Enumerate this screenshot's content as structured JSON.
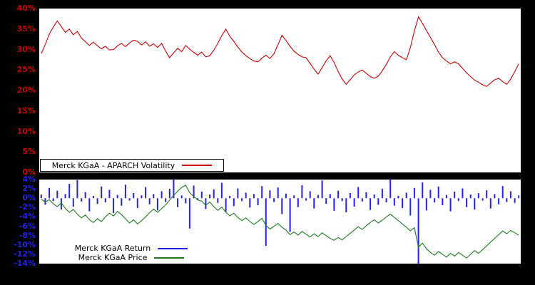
{
  "figure": {
    "background": "#000000",
    "plot_background": "#ffffff"
  },
  "colors": {
    "volatility": "#cc0000",
    "return": "#2222ee",
    "price": "#1f7a1f"
  },
  "chart_data": [
    {
      "type": "line",
      "legend": "Merck KGaA - APARCH Volatility",
      "color": "#cc0000",
      "ylim": [
        0,
        40
      ],
      "yticks": [
        40,
        35,
        30,
        25,
        20,
        15,
        10,
        5,
        0
      ],
      "ytick_labels": [
        "40%",
        "35%",
        "30%",
        "25%",
        "20%",
        "15%",
        "10%",
        "5%",
        "0%"
      ],
      "grid": false,
      "legend_position": "bottom-left",
      "values": [
        29.0,
        31.2,
        33.8,
        35.5,
        37.0,
        35.6,
        34.2,
        35.0,
        33.6,
        34.4,
        32.8,
        31.9,
        31.0,
        31.8,
        30.9,
        30.2,
        30.8,
        29.9,
        30.0,
        30.9,
        31.5,
        30.7,
        31.6,
        32.3,
        32.0,
        31.1,
        31.9,
        30.8,
        31.4,
        30.5,
        31.5,
        29.6,
        28.0,
        29.2,
        30.3,
        29.5,
        31.0,
        30.1,
        29.3,
        28.6,
        29.4,
        28.2,
        28.5,
        29.8,
        31.5,
        33.4,
        35.0,
        33.2,
        32.0,
        30.6,
        29.4,
        28.5,
        27.8,
        27.2,
        27.0,
        27.9,
        28.6,
        27.8,
        29.0,
        31.2,
        33.5,
        32.2,
        30.8,
        29.6,
        28.8,
        28.2,
        28.0,
        26.6,
        25.2,
        24.0,
        25.6,
        27.2,
        28.5,
        26.8,
        24.6,
        22.8,
        21.5,
        22.6,
        23.8,
        24.5,
        25.0,
        24.2,
        23.4,
        23.0,
        23.5,
        24.8,
        26.4,
        28.2,
        29.5,
        28.6,
        28.0,
        27.5,
        30.5,
        34.5,
        38.0,
        36.4,
        34.6,
        33.0,
        31.2,
        29.4,
        28.0,
        27.2,
        26.5,
        27.0,
        26.5,
        25.4,
        24.3,
        23.4,
        22.5,
        22.0,
        21.4,
        21.0,
        21.8,
        22.6,
        23.0,
        22.2,
        21.5,
        22.8,
        24.6,
        26.5
      ]
    },
    {
      "type": "mixed",
      "ylim": [
        -14,
        4
      ],
      "yticks": [
        4,
        2,
        0,
        -2,
        -4,
        -6,
        -8,
        -10,
        -12,
        -14
      ],
      "ytick_labels": [
        "4%",
        "2%",
        "0%",
        "-2%",
        "-4%",
        "-6%",
        "-8%",
        "-10%",
        "-12%",
        "-14%"
      ],
      "grid": false,
      "legend_position": "bottom-left",
      "series": [
        {
          "name": "Merck KGaA Return",
          "type": "bar",
          "color": "#2222ee",
          "values": [
            0.8,
            -1.4,
            2.2,
            -0.6,
            1.6,
            -2.4,
            0.9,
            3.1,
            -1.8,
            3.9,
            -0.7,
            1.3,
            -2.8,
            0.5,
            -1.2,
            2.5,
            -0.9,
            1.8,
            -3.2,
            0.7,
            -1.6,
            2.9,
            -0.5,
            1.1,
            -2.1,
            0.6,
            2.4,
            -1.3,
            0.9,
            -2.6,
            1.5,
            -0.8,
            2.0,
            4.0,
            -1.9,
            0.6,
            -1.1,
            -6.5,
            2.7,
            -0.4,
            1.4,
            -2.3,
            0.8,
            1.9,
            -1.0,
            3.3,
            -2.9,
            0.5,
            -1.7,
            2.1,
            -0.6,
            1.2,
            -2.0,
            0.9,
            -1.5,
            2.6,
            -10.2,
            1.7,
            -0.8,
            2.3,
            -3.4,
            1.0,
            -7.2,
            0.6,
            -1.9,
            2.8,
            -0.5,
            1.5,
            -2.2,
            0.7,
            3.8,
            -1.2,
            0.9,
            -2.7,
            1.6,
            -0.6,
            -3.0,
            1.1,
            -1.8,
            2.4,
            -0.7,
            1.3,
            -2.5,
            0.8,
            -1.4,
            2.0,
            -0.9,
            4.1,
            -1.6,
            0.5,
            -2.1,
            1.2,
            -3.7,
            2.2,
            -14.0,
            3.4,
            -2.6,
            1.8,
            -0.9,
            2.5,
            -1.5,
            0.7,
            -2.8,
            1.4,
            -0.6,
            2.1,
            -1.9,
            0.8,
            -2.4,
            1.1,
            -0.5,
            1.7,
            -2.2,
            0.9,
            -1.3,
            2.6,
            -0.8,
            1.5,
            -1.0,
            0.6
          ]
        },
        {
          "name": "Merck KGaA Price",
          "type": "line",
          "color": "#1f7a1f",
          "values": [
            -0.2,
            -0.8,
            -0.3,
            -1.2,
            -1.8,
            -1.0,
            -2.2,
            -3.0,
            -2.4,
            -3.4,
            -4.2,
            -3.6,
            -4.6,
            -5.2,
            -4.4,
            -5.0,
            -4.0,
            -3.2,
            -3.8,
            -2.8,
            -3.5,
            -4.4,
            -5.3,
            -4.6,
            -5.5,
            -4.8,
            -4.0,
            -3.1,
            -2.3,
            -3.0,
            -2.2,
            -1.4,
            -0.4,
            0.6,
            1.5,
            2.3,
            2.8,
            1.2,
            0.4,
            -0.4,
            -0.6,
            -1.5,
            -0.8,
            -1.8,
            -2.6,
            -1.9,
            -3.0,
            -3.8,
            -3.2,
            -4.1,
            -4.8,
            -4.2,
            -5.0,
            -5.6,
            -5.0,
            -4.3,
            -5.8,
            -6.6,
            -6.0,
            -5.4,
            -6.2,
            -6.8,
            -7.8,
            -7.2,
            -7.9,
            -7.1,
            -7.7,
            -8.3,
            -7.6,
            -8.2,
            -7.4,
            -8.0,
            -8.6,
            -9.0,
            -8.4,
            -8.9,
            -8.2,
            -7.5,
            -6.8,
            -6.1,
            -6.7,
            -5.9,
            -5.2,
            -4.6,
            -5.3,
            -4.7,
            -4.0,
            -3.4,
            -4.1,
            -4.8,
            -5.5,
            -6.2,
            -7.0,
            -6.3,
            -10.5,
            -9.6,
            -10.8,
            -11.6,
            -12.2,
            -11.4,
            -12.0,
            -12.6,
            -11.8,
            -12.4,
            -11.6,
            -12.2,
            -12.8,
            -12.0,
            -11.2,
            -11.8,
            -11.0,
            -10.2,
            -9.4,
            -8.6,
            -7.8,
            -7.0,
            -7.6,
            -6.9,
            -7.4,
            -7.9
          ]
        }
      ]
    }
  ]
}
